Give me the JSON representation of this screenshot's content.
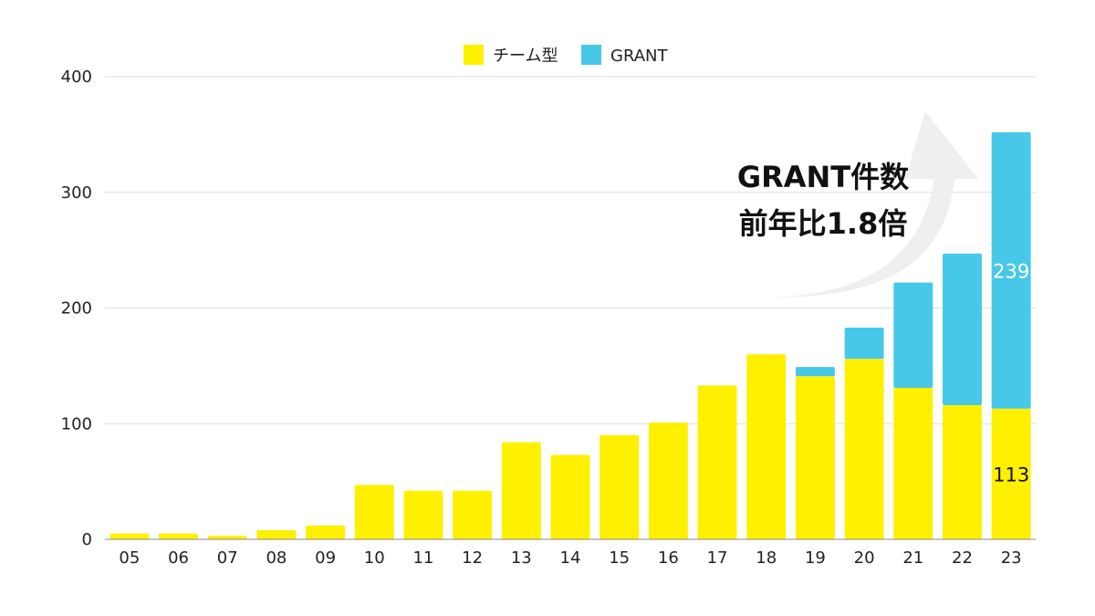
{
  "chart_data": {
    "type": "bar",
    "stacked": true,
    "categories": [
      "05",
      "06",
      "07",
      "08",
      "09",
      "10",
      "11",
      "12",
      "13",
      "14",
      "15",
      "16",
      "17",
      "18",
      "19",
      "20",
      "21",
      "22",
      "23"
    ],
    "series": [
      {
        "name": "チーム型",
        "color": "#FFF000",
        "values": [
          5,
          5,
          3,
          8,
          12,
          47,
          42,
          42,
          84,
          73,
          90,
          101,
          133,
          160,
          141,
          156,
          131,
          116,
          113
        ]
      },
      {
        "name": "GRANT",
        "color": "#47C8E8",
        "values": [
          0,
          0,
          0,
          0,
          0,
          0,
          0,
          0,
          0,
          0,
          0,
          0,
          0,
          0,
          8,
          27,
          91,
          131,
          239
        ]
      }
    ],
    "ylim": [
      0,
      400
    ],
    "yticks": [
      "0",
      "100",
      "200",
      "300",
      "400"
    ],
    "grid": true,
    "legend_position": "top-center",
    "data_labels": [
      {
        "category": "23",
        "series": "GRANT",
        "text": "239",
        "color": "#ffffff"
      },
      {
        "category": "23",
        "series": "チーム型",
        "text": "113",
        "color": "#111111"
      }
    ],
    "annotation": {
      "lines": [
        "GRANT件数",
        "前年比1.8倍"
      ],
      "arrow_color": "#EFEFEF"
    }
  }
}
